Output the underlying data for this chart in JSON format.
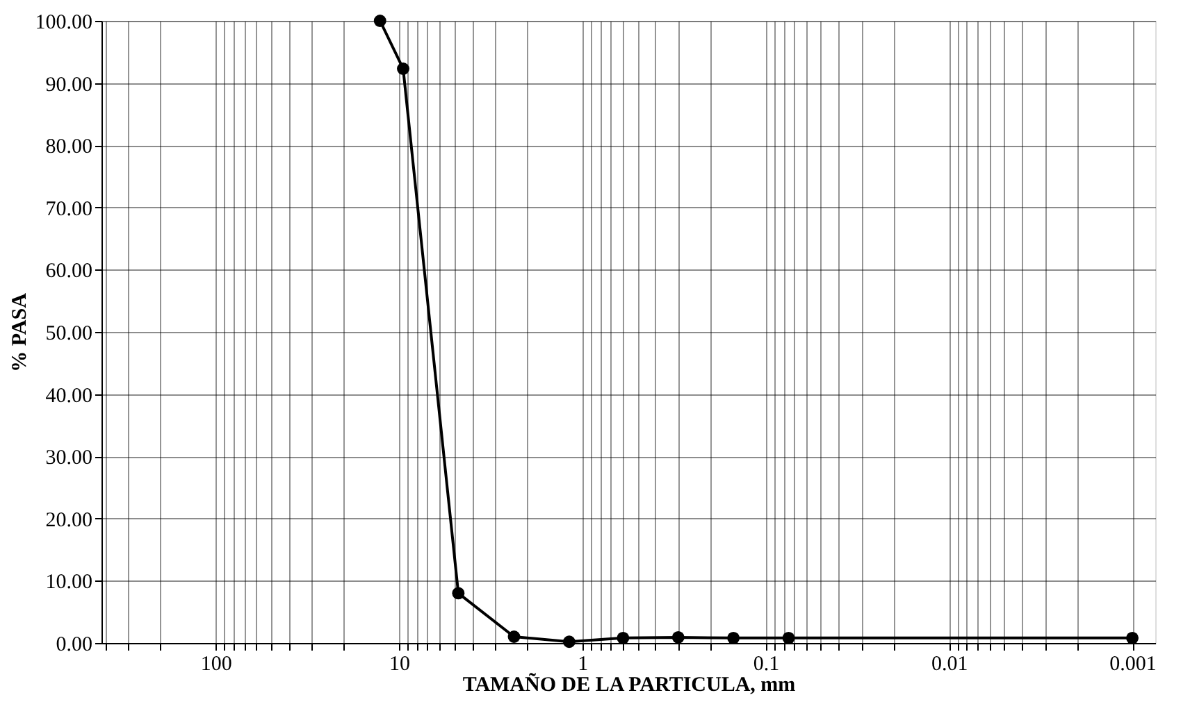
{
  "chart_data": {
    "type": "line",
    "xlabel": "TAMAÑO DE LA PARTICULA, mm",
    "ylabel": "% PASA",
    "x": [
      12.7,
      9.5,
      4.75,
      2.36,
      1.18,
      0.6,
      0.3,
      0.15,
      0.075,
      0.001
    ],
    "series": [
      {
        "color": "#000000",
        "values": [
          100,
          92.3,
          8,
          1,
          0.2,
          0.8,
          0.9,
          0.8,
          0.8,
          0.8
        ]
      }
    ],
    "log": "x",
    "xlim": [
      420,
      0.00075
    ],
    "ylim": [
      0,
      100
    ],
    "xticks": [
      {
        "value": 400,
        "label": null
      },
      {
        "value": 300,
        "label": null
      },
      {
        "value": 200,
        "label": null
      },
      100,
      {
        "value": 90,
        "label": null
      },
      {
        "value": 80,
        "label": null
      },
      {
        "value": 70,
        "label": null
      },
      {
        "value": 60,
        "label": null
      },
      {
        "value": 50,
        "label": null
      },
      {
        "value": 40,
        "label": null
      },
      {
        "value": 30,
        "label": null
      },
      {
        "value": 20,
        "label": null
      },
      10,
      {
        "value": 9,
        "label": null
      },
      {
        "value": 8,
        "label": null
      },
      {
        "value": 7,
        "label": null
      },
      {
        "value": 6,
        "label": null
      },
      {
        "value": 5,
        "label": null
      },
      {
        "value": 4,
        "label": null
      },
      {
        "value": 3,
        "label": null
      },
      {
        "value": 2,
        "label": null
      },
      1,
      {
        "value": 0.9,
        "label": null
      },
      {
        "value": 0.8,
        "label": null
      },
      {
        "value": 0.7,
        "label": null
      },
      {
        "value": 0.6,
        "label": null
      },
      {
        "value": 0.5,
        "label": null
      },
      {
        "value": 0.4,
        "label": null
      },
      {
        "value": 0.3,
        "label": null
      },
      {
        "value": 0.2,
        "label": null
      },
      0.1,
      {
        "value": 0.09,
        "label": null
      },
      {
        "value": 0.08,
        "label": null
      },
      {
        "value": 0.07,
        "label": null
      },
      {
        "value": 0.06,
        "label": null
      },
      {
        "value": 0.05,
        "label": null
      },
      {
        "value": 0.04,
        "label": null
      },
      {
        "value": 0.03,
        "label": null
      },
      {
        "value": 0.02,
        "label": null
      },
      0.01,
      {
        "value": 0.009,
        "label": null
      },
      {
        "value": 0.008,
        "label": null
      },
      {
        "value": 0.007,
        "label": null
      },
      {
        "value": 0.006,
        "label": null
      },
      {
        "value": 0.005,
        "label": null
      },
      {
        "value": 0.004,
        "label": null
      },
      {
        "value": 0.003,
        "label": null
      },
      {
        "value": 0.002,
        "label": null
      },
      0.001
    ],
    "yticks": [
      {
        "value": 0,
        "label": "0.00"
      },
      {
        "value": 10,
        "label": "10.00"
      },
      {
        "value": 20,
        "label": "20.00"
      },
      {
        "value": 30,
        "label": "30.00"
      },
      {
        "value": 40,
        "label": "40.00"
      },
      {
        "value": 50,
        "label": "50.00"
      },
      {
        "value": 60,
        "label": "60.00"
      },
      {
        "value": 70,
        "label": "70.00"
      },
      {
        "value": 80,
        "label": "80.00"
      },
      {
        "value": 90,
        "label": "90.00"
      },
      {
        "value": 100,
        "label": "100.00"
      }
    ],
    "grid": true,
    "marker": "circle",
    "line_style": "solid"
  }
}
